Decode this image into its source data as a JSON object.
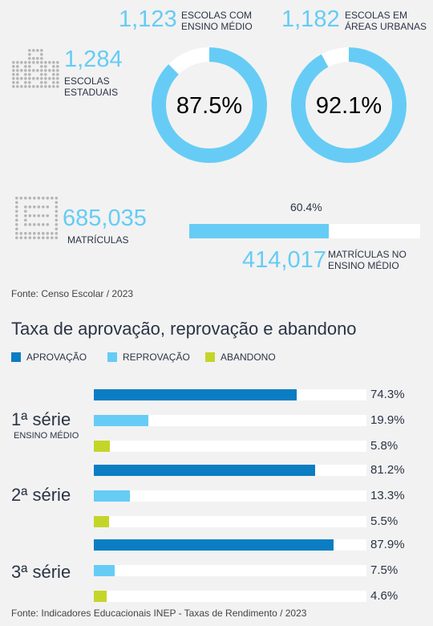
{
  "stats": {
    "ensino_medio": {
      "value": "1,123",
      "label_line1": "ESCOLAS COM",
      "label_line2": "ENSINO MÉDIO",
      "percent": "87.5%",
      "fraction": 0.875
    },
    "urbanas": {
      "value": "1,182",
      "label_line1": "ESCOLAS EM",
      "label_line2": "ÁREAS URBANAS",
      "percent": "92.1%",
      "fraction": 0.921
    },
    "estaduais": {
      "value": "1,284",
      "label_line1": "ESCOLAS",
      "label_line2": "ESTADUAIS"
    },
    "matriculas": {
      "value": "685,035",
      "label": "MATRÍCULAS"
    },
    "matriculas_em": {
      "value": "414,017",
      "label_line1": "MATRÍCULAS NO",
      "label_line2": "ENSINO MÉDIO",
      "percent": "60.4%",
      "fraction": 0.604
    }
  },
  "source_top": "Fonte: Censo Escolar / 2023",
  "source_bottom": "Fonte: Indicadores Educacionais INEP - Taxas de Rendimento / 2023",
  "colors": {
    "aprovacao": "#0b7dc3",
    "reprovacao": "#66ccf5",
    "abandono": "#c4d52a",
    "donut": "#66ccf5",
    "track": "#ffffff"
  },
  "icons": {
    "school": "school-building-icon",
    "enrollment": "enrollment-grid-icon"
  },
  "chart_data": {
    "type": "bar",
    "orientation": "horizontal",
    "title": "Taxa de aprovação, reprovação e abandono",
    "categories": [
      "1ª série",
      "2ª série",
      "3ª série"
    ],
    "category_sub": [
      "ENSINO MÉDIO",
      "",
      ""
    ],
    "unit": "%",
    "xlim": [
      0,
      100
    ],
    "legend_position": "top-left",
    "series": [
      {
        "name": "APROVAÇÃO",
        "values": [
          74.3,
          81.2,
          87.9
        ],
        "labels": [
          "74.3%",
          "81.2%",
          "87.9%"
        ]
      },
      {
        "name": "REPROVAÇÃO",
        "values": [
          19.9,
          13.3,
          7.5
        ],
        "labels": [
          "19.9%",
          "13.3%",
          "7.5%"
        ]
      },
      {
        "name": "ABANDONO",
        "values": [
          5.8,
          5.5,
          4.6
        ],
        "labels": [
          "5.8%",
          "5.5%",
          "4.6%"
        ]
      }
    ]
  }
}
